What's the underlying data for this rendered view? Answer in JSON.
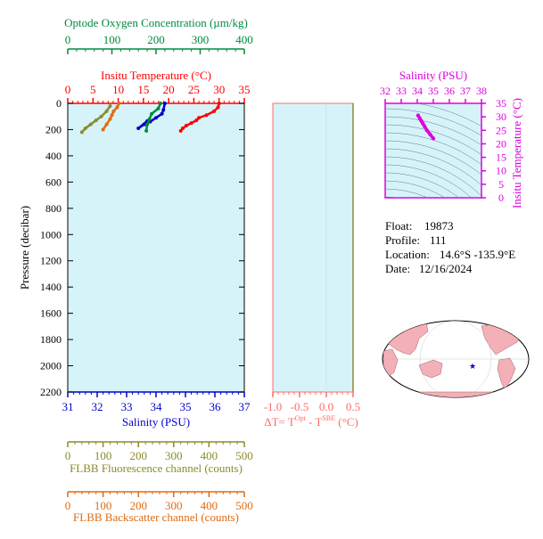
{
  "colors": {
    "oxygen": "#008a3c",
    "temperature": "#ff0000",
    "salinity": "#0000cc",
    "fluorescence": "#8b8b2a",
    "backscatter": "#e06a10",
    "delta": "#ff6b6b",
    "ts": "#dd00dd",
    "panel_bg": "#d6f3fa"
  },
  "axes": {
    "oxygen": {
      "title": "Optode Oxygen Concentration (µm/kg)",
      "ticks": [
        "0",
        "100",
        "200",
        "300",
        "400"
      ],
      "range": [
        0,
        400
      ]
    },
    "temperature": {
      "title": "Insitu Temperature (°C)",
      "ticks": [
        "0",
        "5",
        "10",
        "15",
        "20",
        "25",
        "30",
        "35"
      ],
      "range": [
        0,
        35
      ]
    },
    "pressure": {
      "title": "Pressure (decibar)",
      "ticks": [
        "0",
        "200",
        "400",
        "600",
        "800",
        "1000",
        "1200",
        "1400",
        "1600",
        "1800",
        "2000",
        "2200"
      ],
      "range": [
        0,
        2200
      ]
    },
    "salinity": {
      "title": "Salinity (PSU)",
      "ticks": [
        "31",
        "32",
        "33",
        "34",
        "35",
        "36",
        "37"
      ],
      "range": [
        31,
        37
      ]
    },
    "fluorescence": {
      "title": "FLBB Fluorescence channel (counts)",
      "ticks": [
        "0",
        "100",
        "200",
        "300",
        "400",
        "500"
      ],
      "range": [
        0,
        500
      ]
    },
    "backscatter": {
      "title": "FLBB Backscatter channel (counts)",
      "ticks": [
        "0",
        "100",
        "200",
        "300",
        "400",
        "500"
      ],
      "range": [
        0,
        500
      ]
    },
    "delta": {
      "title_prefix": "ΔT= T",
      "sup1": "Opt",
      "mid": " - T",
      "sup2": "SBE",
      "suffix": " (°C)",
      "ticks": [
        "-1.0",
        "-0.5",
        "0.0",
        "0.5"
      ],
      "range": [
        -1.0,
        0.5
      ]
    },
    "ts_salinity": {
      "title": "Salinity (PSU)",
      "ticks": [
        "32",
        "33",
        "34",
        "35",
        "36",
        "37",
        "38"
      ],
      "range": [
        32,
        38
      ]
    },
    "ts_temperature": {
      "title": "Insitu Temperature (°C)",
      "ticks": [
        "0",
        "5",
        "10",
        "15",
        "20",
        "25",
        "30",
        "35"
      ],
      "range": [
        0,
        35
      ]
    }
  },
  "info": {
    "float_label": "Float:",
    "float_value": "19873",
    "profile_label": "Profile:",
    "profile_value": "111",
    "location_label": "Location:",
    "location_value": "14.6°S  -135.9°E",
    "date_label": "Date:",
    "date_value": "12/16/2024"
  },
  "chart_data": [
    {
      "type": "line",
      "series": [
        {
          "name": "Insitu Temperature",
          "x": [
            30.0,
            29.8,
            29.0,
            27.5,
            26.0,
            25.5,
            24.5,
            23.5,
            22.8,
            22.4
          ],
          "y": [
            0,
            30,
            60,
            90,
            110,
            130,
            150,
            170,
            190,
            210
          ]
        },
        {
          "name": "Salinity",
          "x": [
            34.3,
            34.25,
            34.2,
            34.0,
            33.8,
            33.6,
            33.4,
            33.7
          ],
          "y": [
            0,
            50,
            80,
            110,
            140,
            160,
            190,
            135
          ]
        },
        {
          "name": "Optode Oxygen Concentration",
          "x": [
            210,
            205,
            190,
            185,
            180,
            178
          ],
          "y": [
            0,
            40,
            80,
            120,
            160,
            210
          ]
        },
        {
          "name": "FLBB Fluorescence channel",
          "x": [
            120,
            110,
            95,
            80,
            65,
            50,
            40
          ],
          "y": [
            20,
            60,
            100,
            130,
            160,
            190,
            220
          ]
        },
        {
          "name": "FLBB Backscatter channel",
          "x": [
            145,
            140,
            130,
            125,
            120,
            110,
            100
          ],
          "y": [
            0,
            30,
            60,
            90,
            120,
            160,
            200
          ]
        }
      ],
      "xlim": [
        31,
        37
      ],
      "ylim": [
        2200,
        0
      ]
    },
    {
      "type": "scatter",
      "series": [
        {
          "name": "T-S",
          "x": [
            35.0,
            34.8,
            34.6,
            34.45,
            34.35,
            34.25,
            34.15,
            34.05
          ],
          "y": [
            22.0,
            23.5,
            25.0,
            26.5,
            27.5,
            28.5,
            29.5,
            30.5
          ]
        }
      ],
      "xlim": [
        32,
        38
      ],
      "ylim": [
        0,
        35
      ]
    }
  ]
}
